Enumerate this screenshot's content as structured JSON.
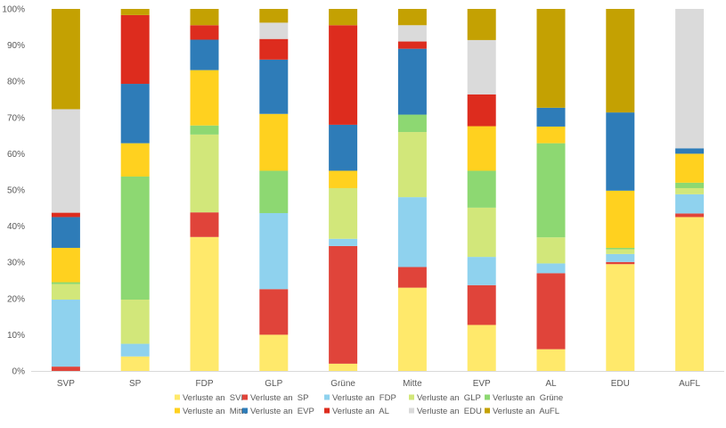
{
  "chart_data": {
    "type": "bar",
    "stacked": true,
    "percent_axis": true,
    "title": "",
    "xlabel": "",
    "ylabel": "",
    "ylim": [
      0,
      100
    ],
    "y_ticks": [
      "0%",
      "10%",
      "20%",
      "30%",
      "40%",
      "50%",
      "60%",
      "70%",
      "80%",
      "90%",
      "100%"
    ],
    "grid": false,
    "legend_position": "bottom",
    "categories": [
      "SVP",
      "SP",
      "FDP",
      "GLP",
      "Grüne",
      "Mitte",
      "EVP",
      "AL",
      "EDU",
      "AuFL"
    ],
    "series": [
      {
        "name": "Verluste an  SVP",
        "color": "#ffe96b",
        "values": [
          0,
          4,
          37,
          10,
          2,
          23,
          12.7,
          6,
          29.5,
          42.5
        ]
      },
      {
        "name": "Verluste an  SP",
        "color": "#e0443a",
        "values": [
          1.2,
          0,
          6.8,
          12.6,
          32.5,
          5.7,
          11,
          21,
          0.6,
          1
        ]
      },
      {
        "name": "Verluste an  FDP",
        "color": "#8fd2ee",
        "values": [
          18.5,
          3.5,
          0,
          21,
          2,
          19.3,
          7.8,
          2.7,
          2.2,
          5.3
        ]
      },
      {
        "name": "Verluste an  GLP",
        "color": "#d2e77a",
        "values": [
          4.3,
          12.2,
          21.5,
          0,
          14,
          18,
          13.6,
          7.2,
          1.3,
          1.7
        ]
      },
      {
        "name": "Verluste an  Grüne",
        "color": "#8dd872",
        "values": [
          0.5,
          34,
          2.5,
          11.7,
          0,
          4.8,
          10.2,
          26,
          0.4,
          1.5
        ]
      },
      {
        "name": "Verluste an  Mitte",
        "color": "#ffd11f",
        "values": [
          9.5,
          9.2,
          15.3,
          15.7,
          4.8,
          0,
          12.3,
          4.6,
          15.8,
          8
        ]
      },
      {
        "name": "Verluste an  EVP",
        "color": "#2e7cb8",
        "values": [
          8.5,
          16.4,
          8.4,
          15,
          12.7,
          18.2,
          0,
          5.2,
          21.6,
          1.5
        ]
      },
      {
        "name": "Verluste an  AL",
        "color": "#dd2c1e",
        "values": [
          1.2,
          19,
          4,
          5.7,
          27.5,
          2,
          8.8,
          0,
          0,
          0
        ]
      },
      {
        "name": "Verluste an  EDU",
        "color": "#dadada",
        "values": [
          28.6,
          0,
          0,
          4.5,
          0,
          4.5,
          15,
          0,
          0,
          38.5
        ]
      },
      {
        "name": "Verluste an  AuFL",
        "color": "#c4a102",
        "values": [
          27.7,
          1.7,
          4.5,
          3.8,
          4.5,
          4.5,
          8.6,
          27.3,
          28.6,
          0
        ]
      }
    ]
  }
}
